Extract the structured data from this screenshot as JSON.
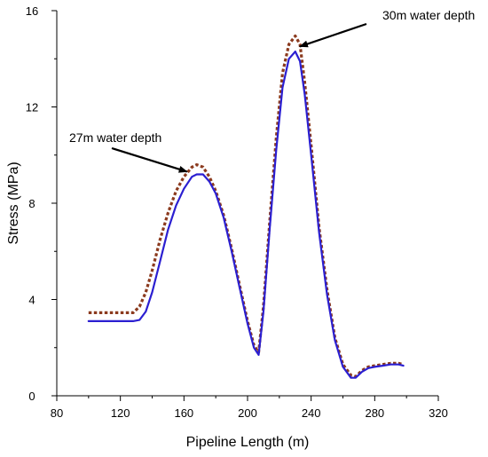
{
  "chart_data": {
    "type": "line",
    "title": "",
    "xlabel": "Pipeline Length (m)",
    "ylabel": "Stress (MPa)",
    "xlim": [
      80,
      320
    ],
    "ylim": [
      0,
      16
    ],
    "xticks": [
      80,
      120,
      160,
      200,
      240,
      280,
      320
    ],
    "yticks": [
      0,
      4,
      8,
      12,
      16
    ],
    "grid": false,
    "legend": "none",
    "series": [
      {
        "color": "#2b1fd1",
        "line_style": "solid",
        "x": [
          100,
          110,
          120,
          128,
          132,
          136,
          140,
          145,
          150,
          155,
          160,
          165,
          168,
          172,
          176,
          180,
          185,
          190,
          195,
          200,
          204,
          207,
          210,
          214,
          218,
          222,
          226,
          230,
          233,
          236,
          240,
          245,
          250,
          255,
          260,
          265,
          268,
          272,
          276,
          280,
          285,
          290,
          295,
          298
        ],
        "y": [
          3.1,
          3.1,
          3.1,
          3.1,
          3.15,
          3.5,
          4.3,
          5.6,
          6.9,
          7.9,
          8.6,
          9.1,
          9.2,
          9.2,
          8.9,
          8.4,
          7.4,
          6.0,
          4.5,
          3.0,
          2.0,
          1.7,
          3.5,
          7.0,
          10.2,
          12.8,
          14.0,
          14.3,
          13.9,
          12.5,
          10.0,
          6.8,
          4.2,
          2.3,
          1.2,
          0.75,
          0.75,
          1.0,
          1.15,
          1.2,
          1.25,
          1.3,
          1.3,
          1.25
        ]
      },
      {
        "color": "#8b3a1e",
        "line_style": "dotted",
        "x": [
          100,
          110,
          120,
          128,
          132,
          136,
          140,
          145,
          150,
          155,
          160,
          165,
          168,
          172,
          176,
          180,
          185,
          190,
          195,
          200,
          204,
          207,
          210,
          214,
          218,
          222,
          226,
          230,
          233,
          236,
          240,
          245,
          250,
          255,
          260,
          265,
          268,
          272,
          276,
          280,
          285,
          290,
          295,
          298
        ],
        "y": [
          3.45,
          3.45,
          3.45,
          3.45,
          3.7,
          4.3,
          5.2,
          6.5,
          7.6,
          8.5,
          9.1,
          9.5,
          9.6,
          9.5,
          9.1,
          8.5,
          7.5,
          6.1,
          4.6,
          3.1,
          2.1,
          1.8,
          3.7,
          7.3,
          10.7,
          13.4,
          14.6,
          14.95,
          14.6,
          13.0,
          10.4,
          7.0,
          4.4,
          2.4,
          1.3,
          0.85,
          0.8,
          1.05,
          1.2,
          1.25,
          1.3,
          1.35,
          1.35,
          1.3
        ]
      }
    ],
    "annotations": [
      {
        "text": "27m water depth",
        "x": 163,
        "y": 9.2
      },
      {
        "text": "30m water depth",
        "x": 234,
        "y": 14.4
      }
    ]
  }
}
